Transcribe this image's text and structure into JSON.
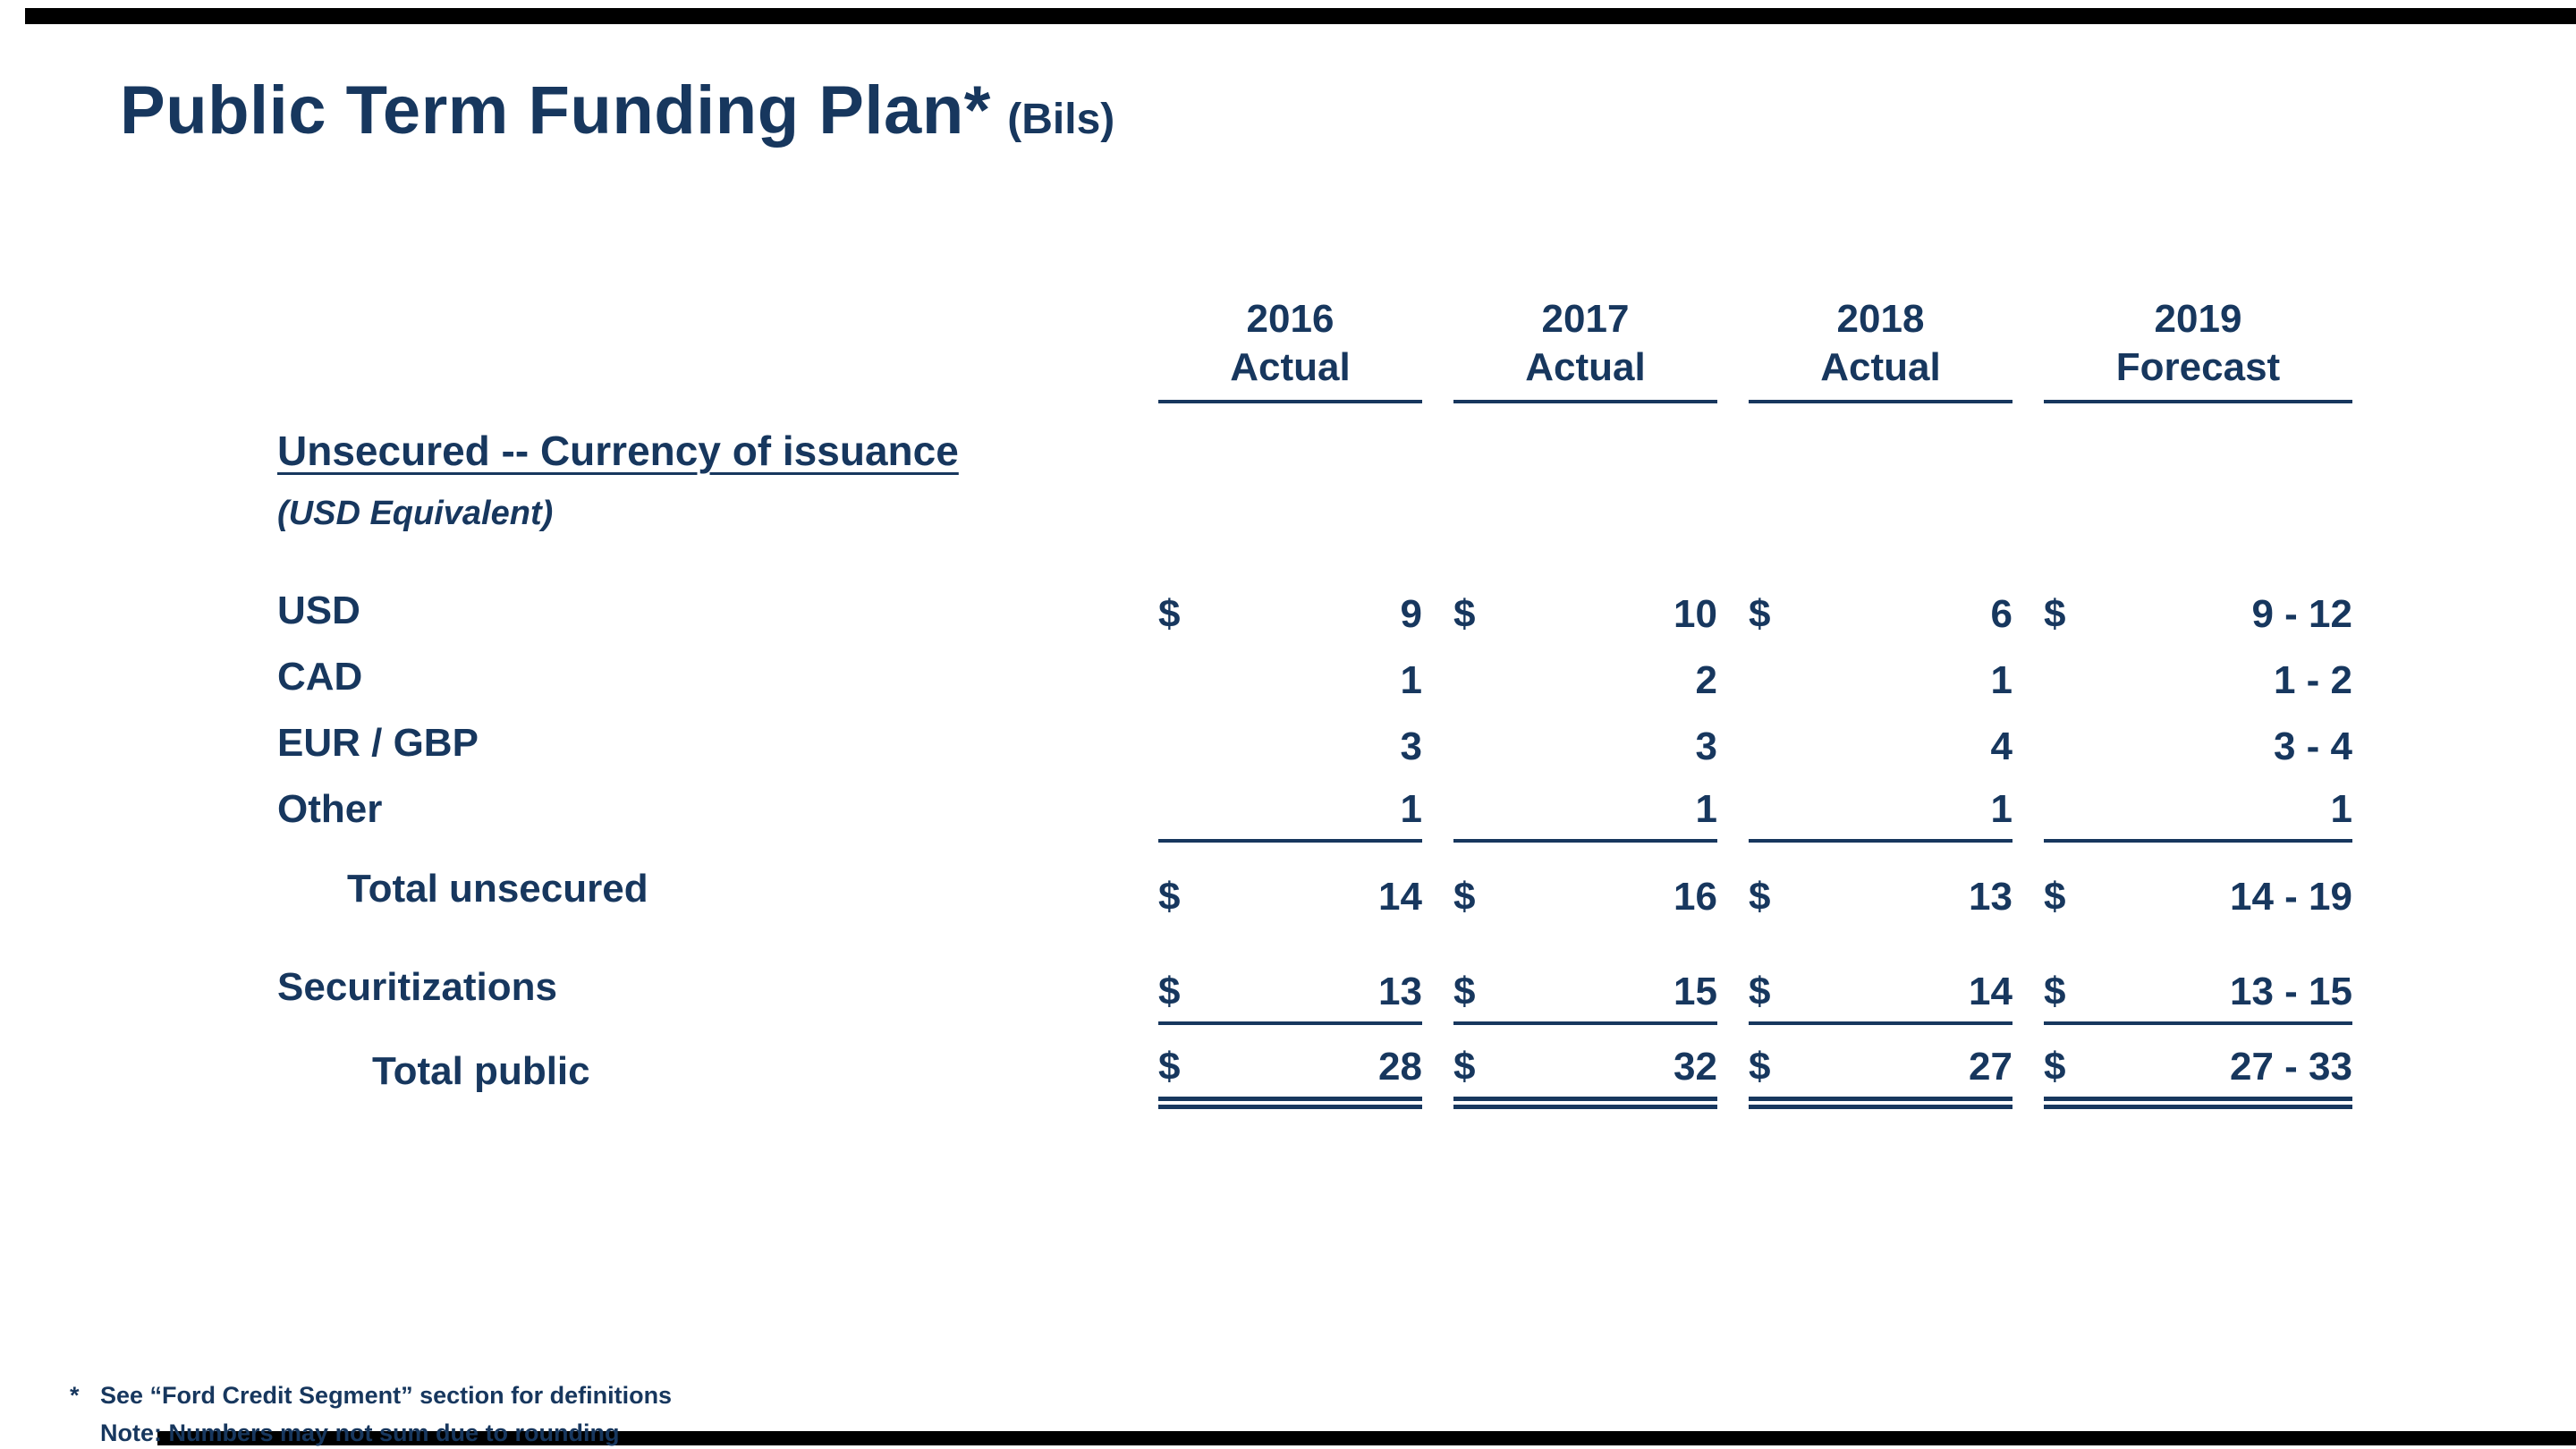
{
  "slide": {
    "title": "Public Term Funding Plan*",
    "title_suffix": "(Bils)"
  },
  "colors": {
    "text_navy": "#17375E",
    "bar_black": "#000000",
    "background": "#FFFFFF"
  },
  "table": {
    "columns": [
      {
        "year": "2016",
        "label": "Actual"
      },
      {
        "year": "2017",
        "label": "Actual"
      },
      {
        "year": "2018",
        "label": "Actual"
      },
      {
        "year": "2019",
        "label": "Forecast"
      }
    ],
    "section": {
      "header": "Unsecured -- Currency of issuance",
      "subheader": "(USD Equivalent)"
    },
    "rows": [
      {
        "label": "USD",
        "cells": [
          {
            "d": "$",
            "v": "9"
          },
          {
            "d": "$",
            "v": "10"
          },
          {
            "d": "$",
            "v": "6"
          },
          {
            "d": "$",
            "v": "9 - 12"
          }
        ]
      },
      {
        "label": "CAD",
        "cells": [
          {
            "d": "",
            "v": "1"
          },
          {
            "d": "",
            "v": "2"
          },
          {
            "d": "",
            "v": "1"
          },
          {
            "d": "",
            "v": "1 - 2"
          }
        ]
      },
      {
        "label": "EUR / GBP",
        "cells": [
          {
            "d": "",
            "v": "3"
          },
          {
            "d": "",
            "v": "3"
          },
          {
            "d": "",
            "v": "4"
          },
          {
            "d": "",
            "v": "3 - 4"
          }
        ]
      },
      {
        "label": "Other",
        "cells": [
          {
            "d": "",
            "v": "1"
          },
          {
            "d": "",
            "v": "1"
          },
          {
            "d": "",
            "v": "1"
          },
          {
            "d": "",
            "v": "1"
          }
        ]
      },
      {
        "label": "Total unsecured",
        "cells": [
          {
            "d": "$",
            "v": "14"
          },
          {
            "d": "$",
            "v": "16"
          },
          {
            "d": "$",
            "v": "13"
          },
          {
            "d": "$",
            "v": "14 - 19"
          }
        ]
      },
      {
        "label": "Securitizations",
        "cells": [
          {
            "d": "$",
            "v": "13"
          },
          {
            "d": "$",
            "v": "15"
          },
          {
            "d": "$",
            "v": "14"
          },
          {
            "d": "$",
            "v": "13 - 15"
          }
        ]
      },
      {
        "label": "Total public",
        "cells": [
          {
            "d": "$",
            "v": "28"
          },
          {
            "d": "$",
            "v": "32"
          },
          {
            "d": "$",
            "v": "27"
          },
          {
            "d": "$",
            "v": "27 - 33"
          }
        ]
      }
    ]
  },
  "footnotes": {
    "marker": "*",
    "line1": "See “Ford Credit Segment” section for definitions",
    "line2": "Note: Numbers may not sum due to rounding"
  }
}
